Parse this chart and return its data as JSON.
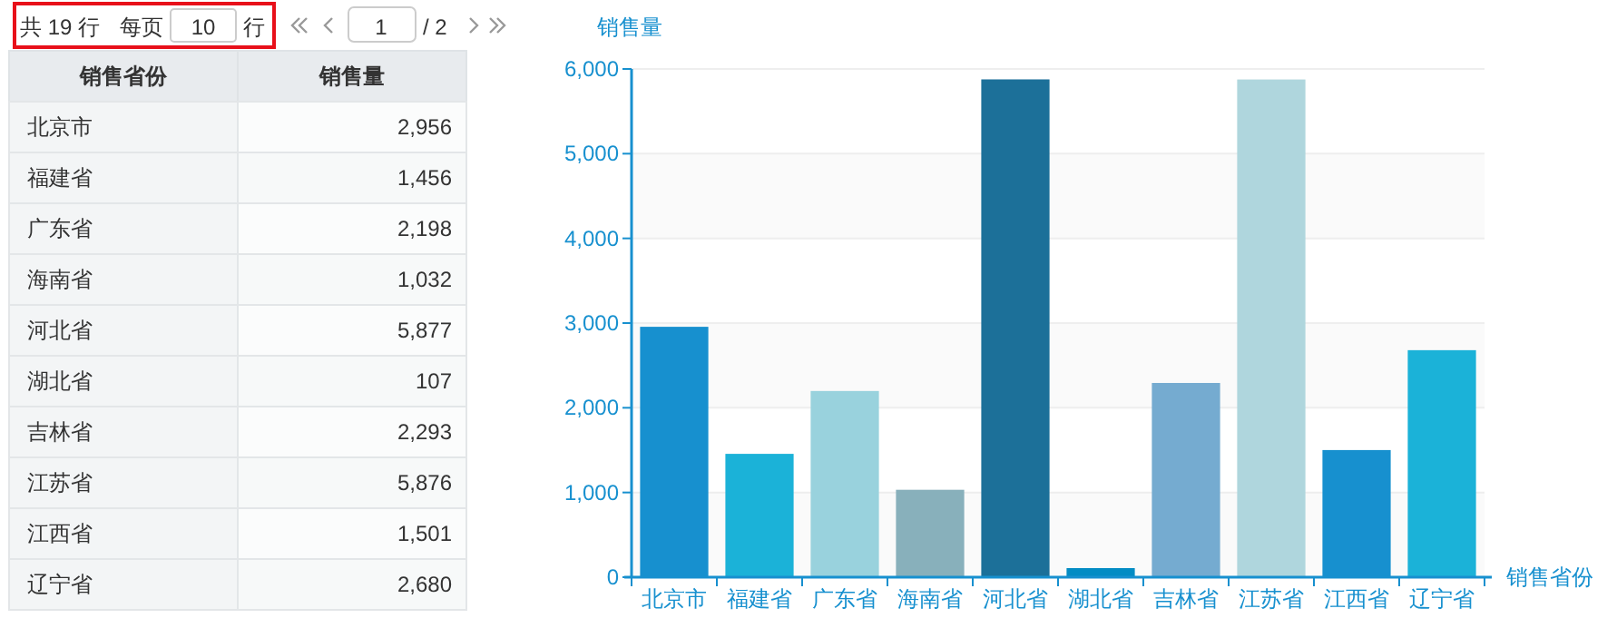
{
  "chart_data": [
    {
      "type": "other",
      "annotations": [
        "共 19 行",
        "每页",
        "10",
        "行",
        "1",
        "/ 2",
        "销售省份",
        "销售量"
      ],
      "categories": [
        "北京市",
        "福建省",
        "广东省",
        "海南省",
        "河北省",
        "湖北省",
        "吉林省",
        "江苏省",
        "江西省",
        "辽宁省"
      ],
      "values": [
        2956,
        1456,
        2198,
        1032,
        5877,
        107,
        2293,
        5876,
        1501,
        2680
      ],
      "value_labels": [
        "2,956",
        "1,456",
        "2,198",
        "1,032",
        "5,877",
        "107",
        "2,293",
        "5,876",
        "1,501",
        "2,680"
      ]
    },
    {
      "type": "bar",
      "xlabel": "销售省份",
      "ylabel": "销售量",
      "categories": [
        "北京市",
        "福建省",
        "广东省",
        "海南省",
        "河北省",
        "湖北省",
        "吉林省",
        "江苏省",
        "江西省",
        "辽宁省"
      ],
      "values": [
        2956,
        1456,
        2198,
        1032,
        5877,
        107,
        2293,
        5876,
        1501,
        2680
      ],
      "colors": [
        "#1790cf",
        "#1bb2d8",
        "#99d2dd",
        "#88b0bb",
        "#1c7099",
        "#038cc4",
        "#75abd0",
        "#afd6dd",
        "#1790cf",
        "#1bb2d8"
      ],
      "ylim": [
        0,
        6000
      ],
      "yticks": [
        {
          "value": 0,
          "label": "0"
        },
        {
          "value": 1000,
          "label": "1,000"
        },
        {
          "value": 2000,
          "label": "2,000"
        },
        {
          "value": 3000,
          "label": "3,000"
        },
        {
          "value": 4000,
          "label": "4,000"
        },
        {
          "value": 5000,
          "label": "5,000"
        },
        {
          "value": 6000,
          "label": "6,000"
        }
      ],
      "grid": "y"
    }
  ]
}
